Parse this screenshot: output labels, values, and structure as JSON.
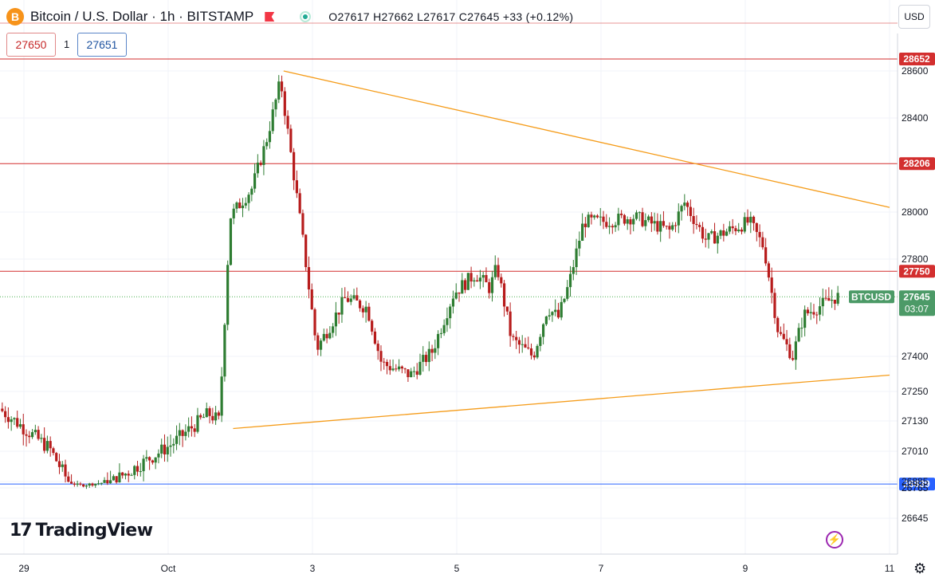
{
  "header": {
    "title": "Bitcoin / U.S. Dollar · 1h · BITSTAMP",
    "ohlc": "O27617  H27662  L27617  C27645  +33 (+0.12%)",
    "bid": "27650",
    "spread": "1",
    "ask": "27651",
    "currency": "USD",
    "logo_symbol": "B"
  },
  "branding": {
    "mark": "17",
    "name": "TradingView"
  },
  "icons": [
    "bitcoin-icon",
    "flag-icon",
    "live-dot-icon",
    "lightning-icon",
    "gear-icon"
  ],
  "chart_data": {
    "type": "candlestick",
    "symbol": "BTCUSD",
    "last_price": 27645,
    "countdown": "03:07",
    "x_tick_labels": [
      "29",
      "Oct",
      "3",
      "5",
      "7",
      "9",
      "11"
    ],
    "x_tick_days": [
      -1,
      1,
      3,
      5,
      7,
      9,
      11
    ],
    "y_tick_labels": [
      "28600",
      "28400",
      "28000",
      "27800",
      "27400",
      "27250",
      "27130",
      "27010",
      "26885",
      "26765",
      "26645"
    ],
    "y_tick_values": [
      28600,
      28400,
      28000,
      27800,
      27400,
      27250,
      27130,
      27010,
      26885,
      26765,
      26645
    ],
    "y_axis_values": [
      26645,
      26765,
      26885,
      27010,
      27130,
      27250,
      27400,
      27800,
      28000,
      28400,
      28600,
      28652
    ],
    "y_axis_positions": [
      650,
      612,
      604,
      566,
      528,
      491,
      447,
      325,
      266,
      148,
      89,
      74
    ],
    "horizontal_levels": [
      {
        "price": 28652,
        "label": "28652",
        "color": "#d32f2f"
      },
      {
        "price": 28206,
        "label": "28206",
        "color": "#d32f2f"
      },
      {
        "price": 27750,
        "label": "27750",
        "color": "#d32f2f"
      },
      {
        "price": 26839,
        "label": "26839",
        "color": "#2962ff"
      }
    ],
    "trendlines": [
      {
        "from": {
          "day": 2.6,
          "price": 28600
        },
        "to": {
          "day": 11.0,
          "price": 28020
        },
        "color": "#f59c1a"
      },
      {
        "from": {
          "day": 1.9,
          "price": 27100
        },
        "to": {
          "day": 11.0,
          "price": 27320
        },
        "color": "#f59c1a"
      }
    ],
    "anchors": [
      [
        -1.3,
        27180
      ],
      [
        -0.6,
        27020
      ],
      [
        -0.2,
        26810
      ],
      [
        0.3,
        26890
      ],
      [
        1.1,
        27040
      ],
      [
        1.6,
        27160
      ],
      [
        1.75,
        27130
      ],
      [
        1.9,
        27980
      ],
      [
        2.2,
        28100
      ],
      [
        2.4,
        28300
      ],
      [
        2.6,
        28560
      ],
      [
        2.9,
        27900
      ],
      [
        3.1,
        27430
      ],
      [
        3.5,
        27640
      ],
      [
        3.8,
        27600
      ],
      [
        4.0,
        27370
      ],
      [
        4.4,
        27320
      ],
      [
        4.7,
        27420
      ],
      [
        5.0,
        27660
      ],
      [
        5.3,
        27740
      ],
      [
        5.5,
        27680
      ],
      [
        5.6,
        27770
      ],
      [
        5.8,
        27470
      ],
      [
        6.1,
        27400
      ],
      [
        6.3,
        27600
      ],
      [
        6.45,
        27560
      ],
      [
        6.6,
        27700
      ],
      [
        6.8,
        27960
      ],
      [
        7.1,
        27960
      ],
      [
        7.5,
        27980
      ],
      [
        8.0,
        27920
      ],
      [
        8.2,
        28040
      ],
      [
        8.5,
        27880
      ],
      [
        8.8,
        27920
      ],
      [
        9.1,
        27960
      ],
      [
        9.3,
        27850
      ],
      [
        9.5,
        27500
      ],
      [
        9.7,
        27400
      ],
      [
        9.85,
        27570
      ],
      [
        10.3,
        27645
      ]
    ]
  }
}
